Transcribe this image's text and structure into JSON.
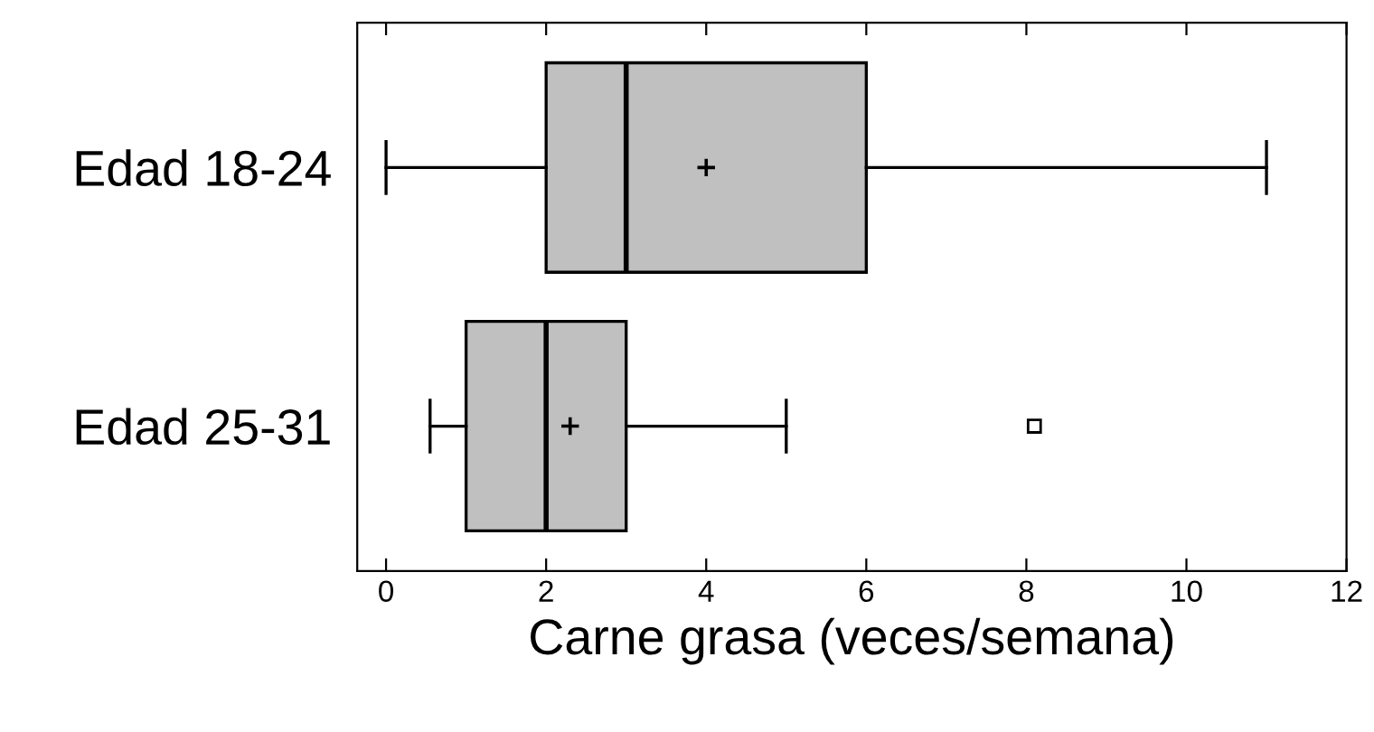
{
  "chart_data": {
    "type": "box",
    "orientation": "horizontal",
    "xlabel": "Carne grasa (veces/semana)",
    "categories": [
      "Edad 18-24",
      "Edad 25-31"
    ],
    "color": "#c0c0c0",
    "boxes": [
      {
        "low": 0,
        "q1": 2,
        "median": 3,
        "q3": 6,
        "high": 11,
        "mean": 4
      },
      {
        "low": 0.55,
        "q1": 1,
        "median": 2,
        "q3": 3,
        "high": 5,
        "mean": 2.3,
        "outliers": [
          8.1
        ]
      }
    ],
    "xlim": [
      -0.36,
      12
    ],
    "xticks": [
      0,
      2,
      4,
      6,
      8,
      10,
      12
    ],
    "grid": false
  }
}
